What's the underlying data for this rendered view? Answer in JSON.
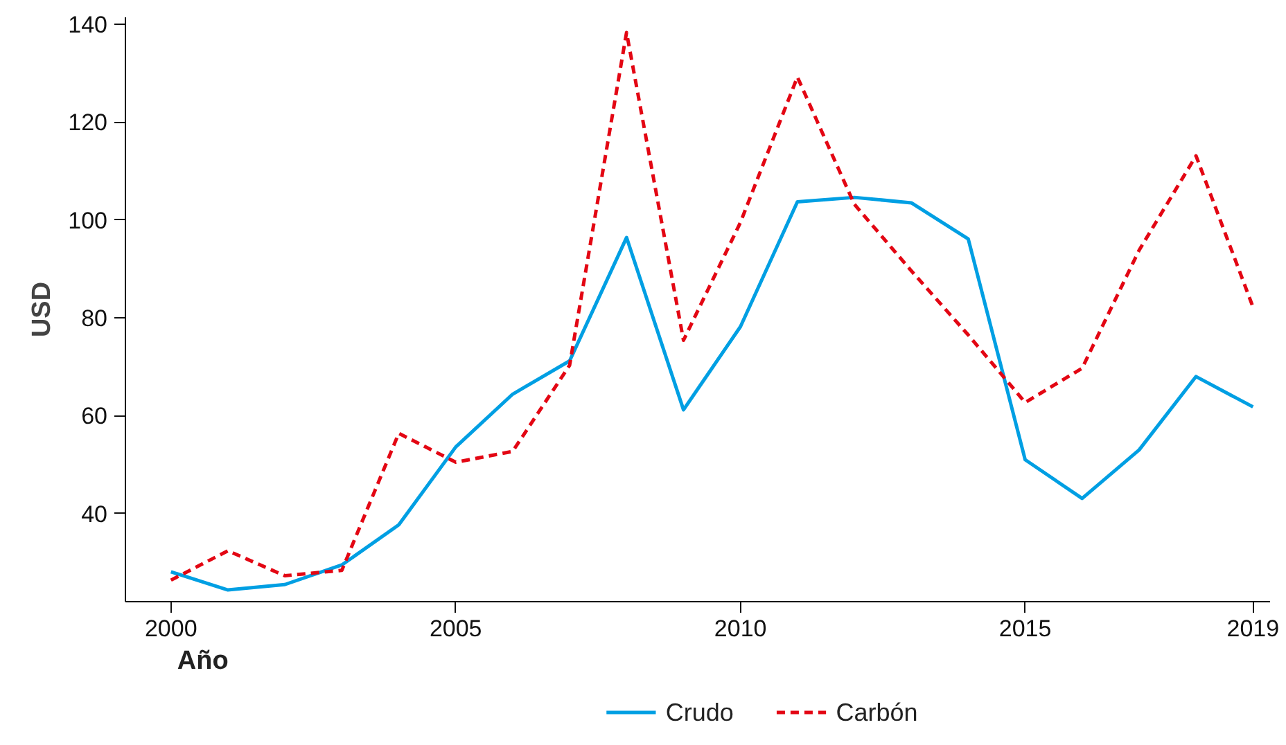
{
  "chart_data": {
    "type": "line",
    "xlabel": "Año",
    "ylabel": "USD",
    "x": [
      2000,
      2001,
      2002,
      2003,
      2004,
      2005,
      2006,
      2007,
      2008,
      2009,
      2010,
      2011,
      2012,
      2013,
      2014,
      2015,
      2016,
      2017,
      2018,
      2019
    ],
    "series": [
      {
        "name": "Crudo",
        "color": "#009fe3",
        "line_style": "solid",
        "values": [
          28.1,
          24.4,
          25.5,
          29.5,
          37.7,
          53.6,
          64.4,
          71.2,
          96.4,
          61.2,
          78.2,
          103.7,
          104.6,
          103.5,
          96.1,
          51.0,
          43.1,
          53.0,
          68.0,
          61.8
        ]
      },
      {
        "name": "Carbón",
        "color": "#e30613",
        "line_style": "dashed",
        "values": [
          26.4,
          32.4,
          27.3,
          28.4,
          56.4,
          50.5,
          52.7,
          70.3,
          138.3,
          75.4,
          99.5,
          129.2,
          103.2,
          89.6,
          76.5,
          62.7,
          69.7,
          93.8,
          113.1,
          82.2
        ]
      }
    ],
    "xlim": [
      1999.2,
      2019.3
    ],
    "ylim": [
      22,
      141.4
    ],
    "xticks": [
      2000,
      2005,
      2010,
      2015,
      2019
    ],
    "yticks": [
      40,
      60,
      80,
      100,
      120,
      140
    ],
    "grid": false,
    "legend": "bottom",
    "marker": "none"
  }
}
